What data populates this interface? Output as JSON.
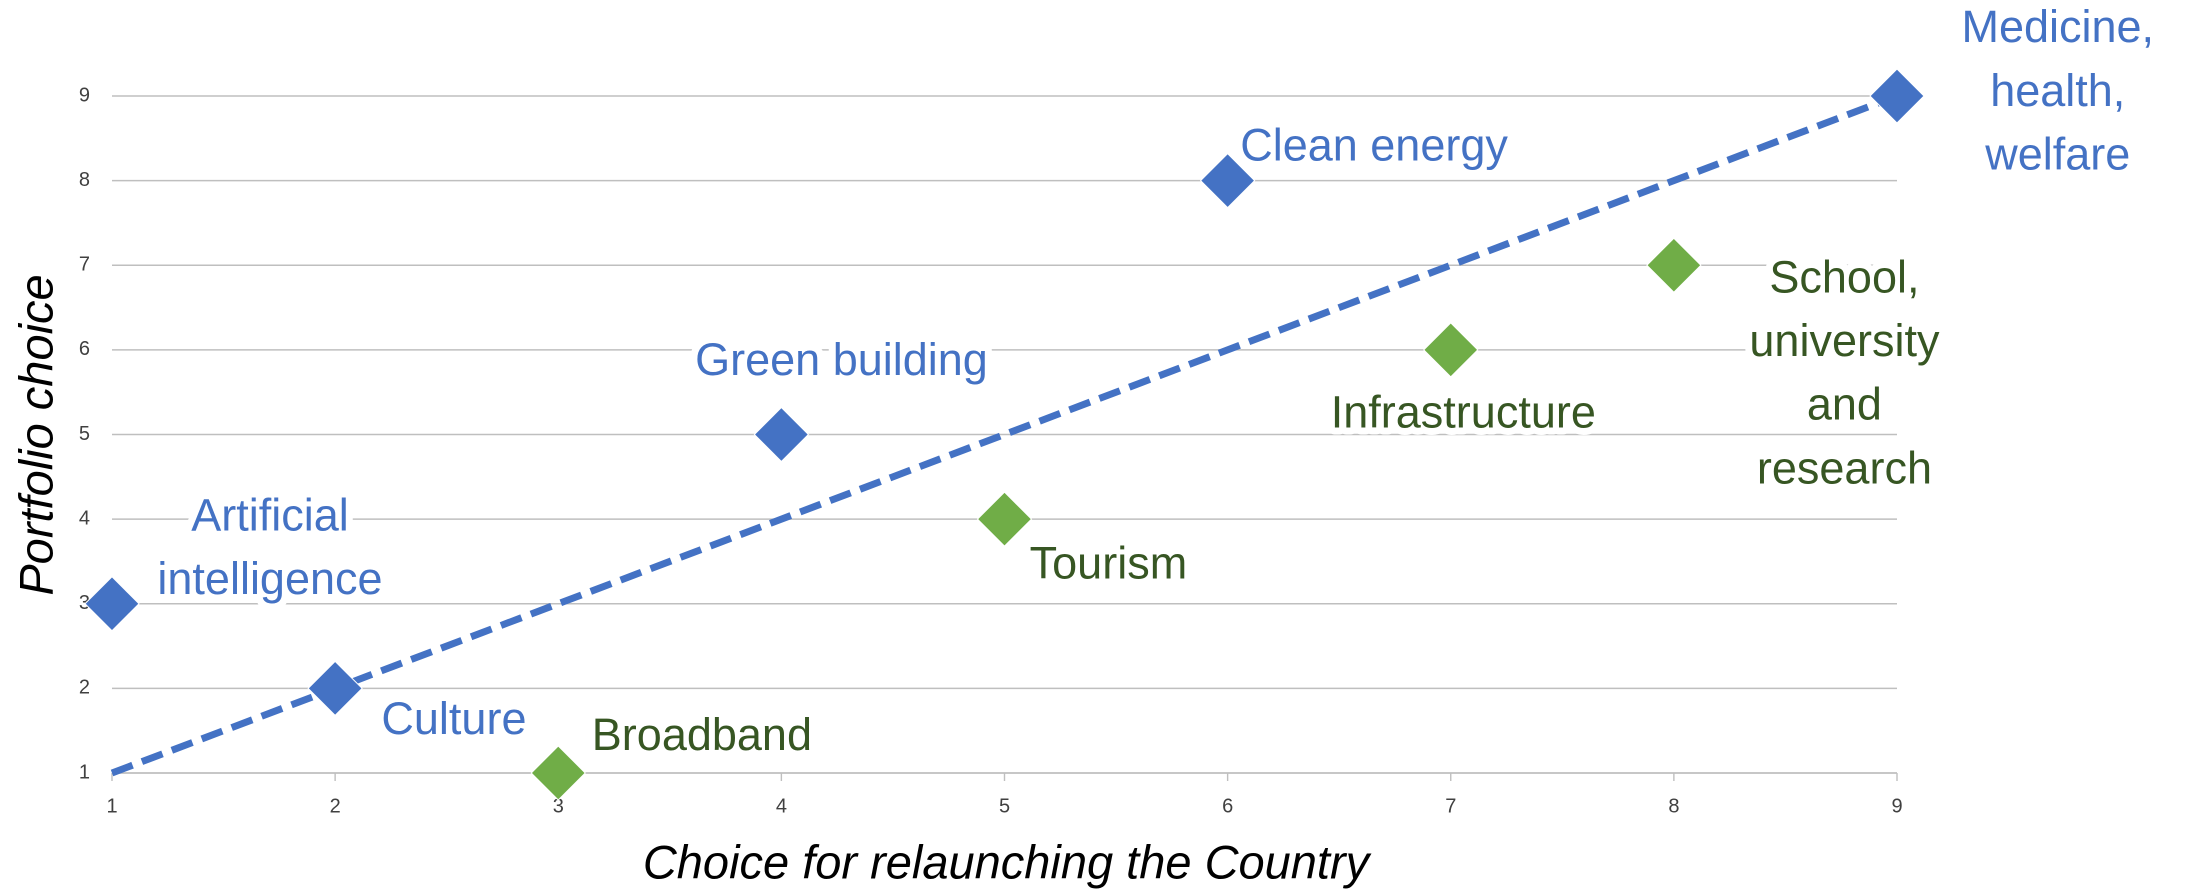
{
  "chart_data": {
    "type": "scatter",
    "xlabel": "Choice for relaunching the Country",
    "ylabel": "Portfolio choice",
    "xlim": [
      1,
      9
    ],
    "ylim": [
      1,
      9
    ],
    "xticks": [
      1,
      2,
      3,
      4,
      5,
      6,
      7,
      8,
      9
    ],
    "yticks": [
      1,
      2,
      3,
      4,
      5,
      6,
      7,
      8,
      9
    ],
    "grid": true,
    "series": [
      {
        "color": "#4472c4",
        "label_color": "#4472c4",
        "x": [
          1,
          2,
          4,
          6,
          9
        ],
        "y": [
          3,
          2,
          5,
          8,
          9
        ],
        "labels": [
          [
            "Artificial",
            "intelligence"
          ],
          [
            "Culture"
          ],
          [
            "Green building"
          ],
          [
            "Clean energy"
          ],
          [
            "Medicine,",
            "health,",
            "welfare"
          ]
        ]
      },
      {
        "color": "#70ad47",
        "label_color": "#375623",
        "x": [
          3,
          5,
          7,
          8
        ],
        "y": [
          1,
          4,
          6,
          7
        ],
        "labels": [
          [
            "Broadband"
          ],
          [
            "Tourism"
          ],
          [
            "Infrastructure"
          ],
          [
            "School,",
            "university",
            "and",
            "research"
          ]
        ]
      }
    ],
    "trendline": {
      "color": "#4472c4",
      "x": [
        1,
        9
      ],
      "y": [
        1,
        9
      ]
    }
  }
}
